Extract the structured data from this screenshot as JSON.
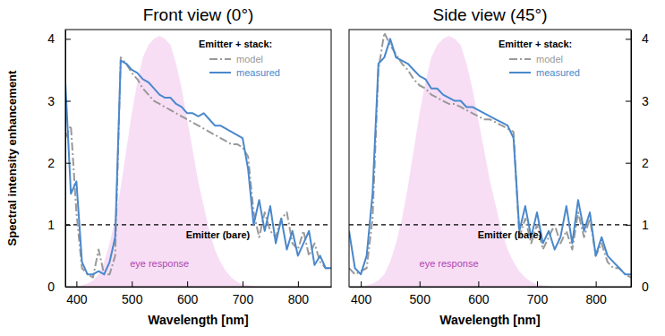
{
  "chart_data": [
    {
      "type": "line",
      "title": "Front view (0°)",
      "x_label": "Wavelength [nm]",
      "y_label": "Spectral intensity enhancement",
      "x": [
        380,
        390,
        400,
        410,
        420,
        430,
        440,
        450,
        460,
        470,
        480,
        490,
        500,
        510,
        520,
        530,
        540,
        550,
        560,
        570,
        580,
        590,
        600,
        610,
        620,
        630,
        640,
        650,
        660,
        670,
        680,
        690,
        700,
        710,
        720,
        730,
        740,
        750,
        760,
        770,
        780,
        790,
        800,
        810,
        820,
        830,
        840,
        850,
        860
      ],
      "xlim": [
        380,
        860
      ],
      "xticks": [
        400,
        500,
        600,
        700,
        800
      ],
      "ylim": [
        0,
        4.15
      ],
      "yticks": [
        0,
        1,
        2,
        3,
        4
      ],
      "legend": "top-right",
      "legend_title": "Emitter + stack:",
      "series": [
        {
          "name": "eye response",
          "type": "area",
          "color": "#f7def5",
          "values": [
            0,
            0,
            0,
            0.02,
            0.05,
            0.1,
            0.2,
            0.4,
            0.7,
            1.1,
            1.6,
            2.2,
            2.8,
            3.3,
            3.7,
            3.9,
            4.0,
            4.05,
            4.0,
            3.9,
            3.6,
            3.2,
            2.7,
            2.2,
            1.7,
            1.3,
            0.9,
            0.6,
            0.4,
            0.25,
            0.15,
            0.08,
            0.04,
            0.02,
            0.01,
            0,
            0,
            0,
            0,
            0,
            0,
            0,
            0,
            0,
            0,
            0,
            0,
            0,
            0
          ]
        },
        {
          "name": "Emitter (bare)",
          "type": "reference",
          "color": "#000000",
          "line_style": "dashed",
          "x": [
            380,
            860
          ],
          "values": [
            1,
            1
          ]
        },
        {
          "name": "model",
          "color": "#999999",
          "line_style": "dashdot",
          "values": [
            2.4,
            2.6,
            1.2,
            0.3,
            0.2,
            0.15,
            0.6,
            0.2,
            0.2,
            0.5,
            3.7,
            3.6,
            3.45,
            3.35,
            3.2,
            3.1,
            3.0,
            2.95,
            2.9,
            2.85,
            2.8,
            2.75,
            2.7,
            2.65,
            2.6,
            2.55,
            2.5,
            2.45,
            2.4,
            2.35,
            2.3,
            2.3,
            2.25,
            2.1,
            1.2,
            0.8,
            1.2,
            0.9,
            0.8,
            1.1,
            1.2,
            0.7,
            0.6,
            0.9,
            0.5,
            0.7,
            0.4,
            0.3,
            0.3
          ]
        },
        {
          "name": "measured",
          "color": "#4a88cc",
          "line_style": "solid",
          "values": [
            3.3,
            1.5,
            1.7,
            0.4,
            0.2,
            0.2,
            0.25,
            0.2,
            0.4,
            0.8,
            3.65,
            3.6,
            3.5,
            3.45,
            3.35,
            3.3,
            3.2,
            3.1,
            3.05,
            3.05,
            2.95,
            2.9,
            2.8,
            2.8,
            2.75,
            2.8,
            2.7,
            2.6,
            2.6,
            2.55,
            2.5,
            2.45,
            2.4,
            1.9,
            1.0,
            1.4,
            0.9,
            1.3,
            0.7,
            1.1,
            0.6,
            0.9,
            0.5,
            0.7,
            0.9,
            0.35,
            0.5,
            0.3,
            0.3
          ]
        }
      ]
    },
    {
      "type": "line",
      "title": "Side view (45°)",
      "x_label": "Wavelength [nm]",
      "x": [
        380,
        390,
        400,
        410,
        420,
        430,
        440,
        450,
        460,
        470,
        480,
        490,
        500,
        510,
        520,
        530,
        540,
        550,
        560,
        570,
        580,
        590,
        600,
        610,
        620,
        630,
        640,
        650,
        660,
        670,
        680,
        690,
        700,
        710,
        720,
        730,
        740,
        750,
        760,
        770,
        780,
        790,
        800,
        810,
        820,
        830,
        840,
        850,
        860
      ],
      "xlim": [
        380,
        860
      ],
      "xticks": [
        400,
        500,
        600,
        700,
        800
      ],
      "y2lim": [
        0,
        4.15
      ],
      "y2ticks": [
        0,
        1,
        2,
        3,
        4
      ],
      "legend": "top-right",
      "legend_title": "Emitter + stack:",
      "series": [
        {
          "name": "eye response",
          "type": "area",
          "color": "#f7def5",
          "axis": "y2",
          "values": [
            0,
            0,
            0,
            0.02,
            0.05,
            0.1,
            0.2,
            0.4,
            0.7,
            1.1,
            1.6,
            2.2,
            2.8,
            3.3,
            3.7,
            3.9,
            4.0,
            4.05,
            4.0,
            3.9,
            3.6,
            3.2,
            2.7,
            2.2,
            1.7,
            1.3,
            0.9,
            0.6,
            0.4,
            0.25,
            0.15,
            0.08,
            0.04,
            0.02,
            0.01,
            0,
            0,
            0,
            0,
            0,
            0,
            0,
            0,
            0,
            0,
            0,
            0,
            0,
            0
          ]
        },
        {
          "name": "Emitter (bare)",
          "type": "reference",
          "color": "#000000",
          "line_style": "dashed",
          "axis": "y2",
          "x": [
            380,
            860
          ],
          "values": [
            1,
            1
          ]
        },
        {
          "name": "model",
          "color": "#999999",
          "line_style": "dashdot",
          "axis": "y2",
          "values": [
            0.3,
            0.2,
            0.25,
            0.3,
            1.1,
            3.5,
            4.1,
            3.9,
            3.75,
            3.6,
            3.5,
            3.35,
            3.25,
            3.2,
            3.1,
            3.05,
            3.0,
            2.95,
            2.95,
            2.9,
            2.85,
            2.8,
            2.75,
            2.7,
            2.7,
            2.65,
            2.6,
            2.55,
            2.5,
            0.8,
            1.1,
            0.7,
            1.0,
            0.6,
            0.8,
            1.0,
            0.7,
            0.9,
            0.6,
            1.2,
            0.8,
            1.1,
            0.5,
            0.7,
            0.4,
            0.3,
            0.3,
            0.2,
            0.15
          ]
        },
        {
          "name": "measured",
          "color": "#4a88cc",
          "line_style": "solid",
          "axis": "y2",
          "values": [
            0.9,
            0.3,
            0.2,
            0.5,
            1.5,
            3.6,
            3.7,
            4.0,
            3.7,
            3.65,
            3.6,
            3.5,
            3.4,
            3.35,
            3.2,
            3.2,
            3.1,
            3.05,
            3.0,
            3.0,
            2.9,
            2.9,
            2.85,
            2.8,
            2.75,
            2.7,
            2.65,
            2.6,
            2.4,
            0.9,
            1.3,
            0.8,
            1.2,
            0.7,
            0.9,
            0.6,
            0.8,
            1.3,
            0.7,
            1.4,
            0.9,
            1.2,
            0.5,
            0.8,
            0.5,
            0.4,
            0.3,
            0.2,
            0.2
          ]
        }
      ]
    }
  ]
}
